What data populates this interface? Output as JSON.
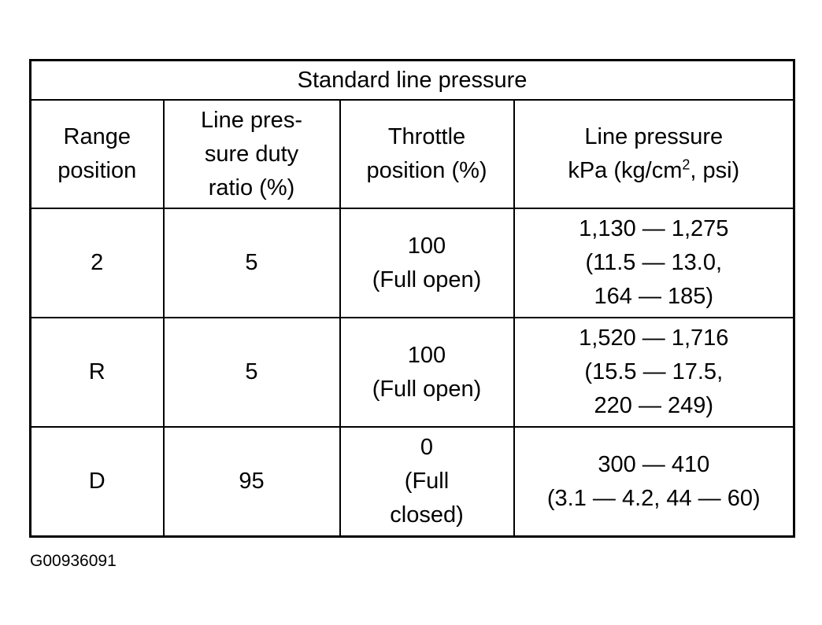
{
  "table": {
    "title": "Standard line pressure",
    "headers": [
      [
        "Range",
        "position"
      ],
      [
        "Line pres-",
        "sure duty",
        "ratio (%)"
      ],
      [
        "Throttle",
        "position (%)"
      ],
      [
        "Line pressure",
        "kPa (kg/cm",
        "2",
        ", psi)"
      ]
    ],
    "rows": [
      {
        "range": "2",
        "duty": "5",
        "throttle": [
          "100",
          "(Full open)"
        ],
        "pressure": [
          "1,130 — 1,275",
          "(11.5 — 13.0,",
          "164 — 185)"
        ]
      },
      {
        "range": "R",
        "duty": "5",
        "throttle": [
          "100",
          "(Full open)"
        ],
        "pressure": [
          "1,520 — 1,716",
          "(15.5 — 17.5,",
          "220 — 249)"
        ]
      },
      {
        "range": "D",
        "duty": "95",
        "throttle": [
          "0",
          "(Full",
          "closed)"
        ],
        "pressure": [
          "300 — 410",
          "(3.1 — 4.2, 44 — 60)"
        ]
      }
    ]
  },
  "figure_id": "G00936091"
}
